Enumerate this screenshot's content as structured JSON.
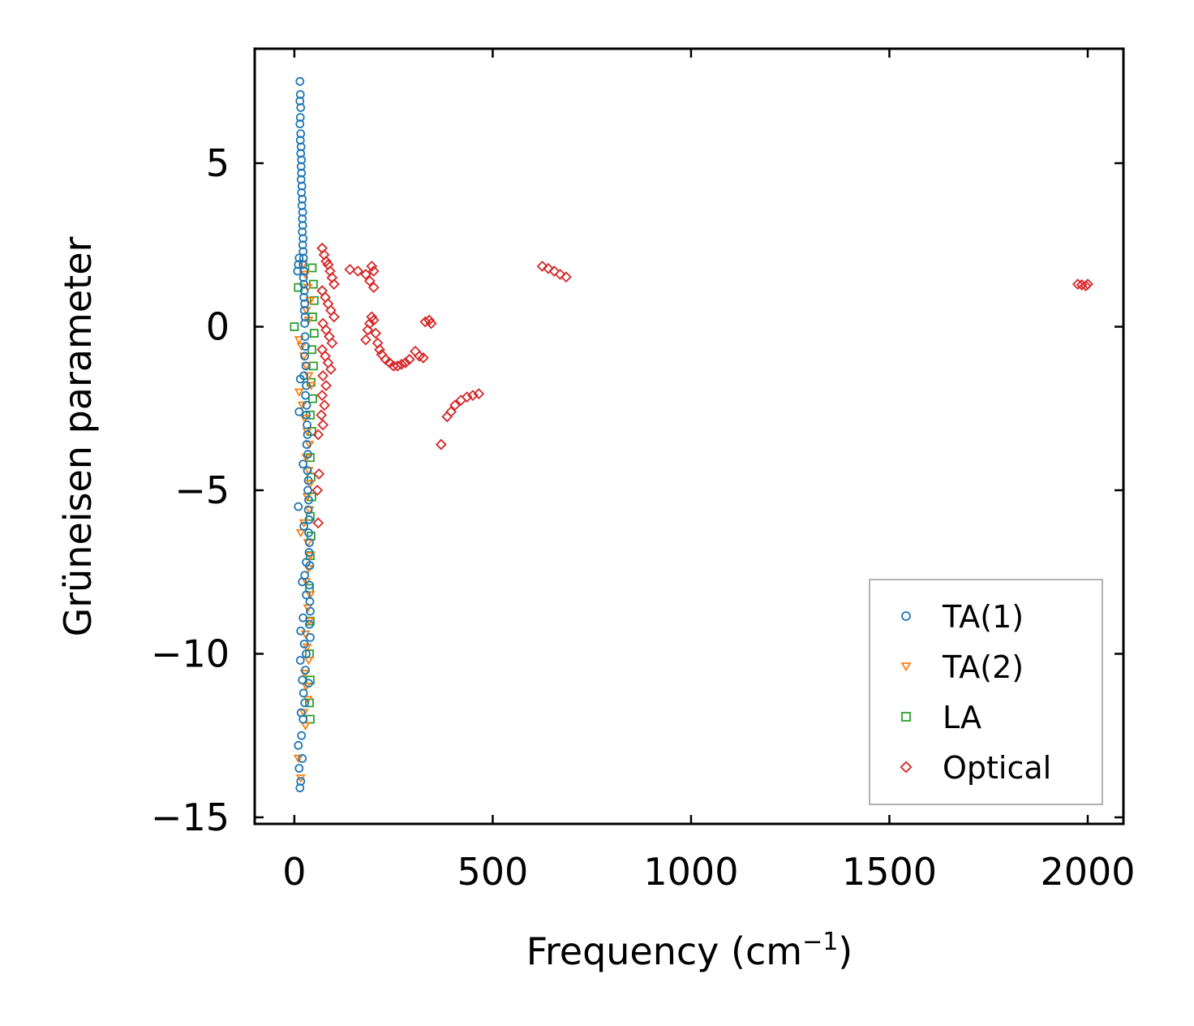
{
  "chart_data": {
    "type": "scatter",
    "xlabel": "Frequency (cm",
    "xlabel_sup": "−1",
    "xlabel_end": ")",
    "ylabel": "Grüneisen parameter",
    "xlim": [
      -100,
      2090
    ],
    "ylim": [
      -15.2,
      8.5
    ],
    "xticks": [
      0,
      500,
      1000,
      1500,
      2000
    ],
    "xtick_labels": [
      "0",
      "500",
      "1000",
      "1500",
      "2000"
    ],
    "yticks": [
      5,
      0,
      -5,
      -10,
      -15
    ],
    "ytick_labels": [
      "5",
      "0",
      "−5",
      "−10",
      "−15"
    ],
    "legend_position": "lower-right",
    "series": [
      {
        "name": "TA(1)",
        "marker": "circle",
        "color": "#1f77b4",
        "points": [
          [
            14,
            7.5
          ],
          [
            15,
            7.1
          ],
          [
            14,
            6.9
          ],
          [
            16,
            6.7
          ],
          [
            15,
            6.4
          ],
          [
            14,
            6.2
          ],
          [
            16,
            5.9
          ],
          [
            15,
            5.7
          ],
          [
            17,
            5.5
          ],
          [
            16,
            5.3
          ],
          [
            18,
            5.1
          ],
          [
            17,
            4.9
          ],
          [
            18,
            4.7
          ],
          [
            17,
            4.5
          ],
          [
            19,
            4.3
          ],
          [
            18,
            4.1
          ],
          [
            20,
            3.9
          ],
          [
            19,
            3.7
          ],
          [
            21,
            3.5
          ],
          [
            20,
            3.3
          ],
          [
            21,
            3.1
          ],
          [
            20,
            2.9
          ],
          [
            22,
            2.7
          ],
          [
            21,
            2.5
          ],
          [
            22,
            2.3
          ],
          [
            23,
            2.1
          ],
          [
            22,
            1.9
          ],
          [
            24,
            1.7
          ],
          [
            23,
            1.5
          ],
          [
            24,
            1.3
          ],
          [
            25,
            1.1
          ],
          [
            24,
            0.9
          ],
          [
            26,
            0.7
          ],
          [
            25,
            0.5
          ],
          [
            27,
            0.3
          ],
          [
            26,
            0.1
          ],
          [
            8,
            1.7
          ],
          [
            10,
            1.9
          ],
          [
            12,
            2.1
          ],
          [
            27,
            -0.3
          ],
          [
            28,
            -0.6
          ],
          [
            26,
            -0.9
          ],
          [
            29,
            -1.2
          ],
          [
            24,
            -1.5
          ],
          [
            15,
            -1.6
          ],
          [
            30,
            -1.8
          ],
          [
            28,
            -2.1
          ],
          [
            12,
            -2.6
          ],
          [
            31,
            -2.4
          ],
          [
            30,
            -2.7
          ],
          [
            32,
            -3.0
          ],
          [
            33,
            -3.3
          ],
          [
            31,
            -3.6
          ],
          [
            34,
            -3.9
          ],
          [
            22,
            -4.2
          ],
          [
            33,
            -4.4
          ],
          [
            35,
            -4.7
          ],
          [
            34,
            -5.0
          ],
          [
            36,
            -5.3
          ],
          [
            10,
            -5.5
          ],
          [
            35,
            -5.6
          ],
          [
            37,
            -5.9
          ],
          [
            24,
            -6.1
          ],
          [
            36,
            -6.3
          ],
          [
            38,
            -6.6
          ],
          [
            37,
            -6.9
          ],
          [
            30,
            -7.2
          ],
          [
            39,
            -7.3
          ],
          [
            26,
            -7.6
          ],
          [
            20,
            -7.8
          ],
          [
            38,
            -7.9
          ],
          [
            30,
            -8.2
          ],
          [
            39,
            -8.4
          ],
          [
            40,
            -8.7
          ],
          [
            22,
            -8.9
          ],
          [
            38,
            -9.1
          ],
          [
            16,
            -9.3
          ],
          [
            40,
            -9.5
          ],
          [
            25,
            -9.7
          ],
          [
            30,
            -10.0
          ],
          [
            15,
            -10.2
          ],
          [
            28,
            -10.5
          ],
          [
            20,
            -10.8
          ],
          [
            36,
            -10.9
          ],
          [
            23,
            -11.2
          ],
          [
            26,
            -11.5
          ],
          [
            17,
            -11.8
          ],
          [
            22,
            -12.0
          ],
          [
            18,
            -12.5
          ],
          [
            10,
            -12.8
          ],
          [
            20,
            -13.2
          ],
          [
            12,
            -13.5
          ],
          [
            16,
            -13.9
          ],
          [
            14,
            -14.1
          ]
        ]
      },
      {
        "name": "TA(2)",
        "marker": "triangle-down",
        "color": "#ff7f0e",
        "points": [
          [
            22,
            1.9
          ],
          [
            28,
            1.6
          ],
          [
            34,
            1.2
          ],
          [
            40,
            0.8
          ],
          [
            30,
            0.5
          ],
          [
            36,
            0.2
          ],
          [
            12,
            -0.4
          ],
          [
            18,
            -0.6
          ],
          [
            24,
            -0.9
          ],
          [
            30,
            -1.2
          ],
          [
            36,
            -1.5
          ],
          [
            42,
            -1.8
          ],
          [
            12,
            -2.0
          ],
          [
            20,
            -2.4
          ],
          [
            26,
            -2.8
          ],
          [
            32,
            -3.2
          ],
          [
            38,
            -3.6
          ],
          [
            30,
            -4.0
          ],
          [
            36,
            -4.4
          ],
          [
            40,
            -4.8
          ],
          [
            32,
            -5.2
          ],
          [
            38,
            -5.6
          ],
          [
            24,
            -6.0
          ],
          [
            16,
            -6.3
          ],
          [
            34,
            -6.6
          ],
          [
            40,
            -7.0
          ],
          [
            36,
            -7.4
          ],
          [
            30,
            -7.8
          ],
          [
            40,
            -8.2
          ],
          [
            34,
            -8.6
          ],
          [
            38,
            -9.0
          ],
          [
            28,
            -9.4
          ],
          [
            32,
            -9.8
          ],
          [
            36,
            -10.2
          ],
          [
            26,
            -10.6
          ],
          [
            30,
            -11.0
          ],
          [
            34,
            -11.4
          ],
          [
            24,
            -11.8
          ],
          [
            28,
            -12.2
          ],
          [
            10,
            -13.2
          ],
          [
            16,
            -13.8
          ]
        ]
      },
      {
        "name": "LA",
        "marker": "square",
        "color": "#2ca02c",
        "points": [
          [
            0,
            0.0
          ],
          [
            10,
            1.2
          ],
          [
            45,
            1.8
          ],
          [
            48,
            1.3
          ],
          [
            50,
            0.8
          ],
          [
            46,
            0.3
          ],
          [
            50,
            -0.2
          ],
          [
            44,
            -0.7
          ],
          [
            48,
            -1.2
          ],
          [
            42,
            -1.7
          ],
          [
            46,
            -2.2
          ],
          [
            40,
            -2.7
          ],
          [
            44,
            -3.2
          ],
          [
            40,
            -4.0
          ],
          [
            42,
            -4.6
          ],
          [
            44,
            -5.2
          ],
          [
            40,
            -5.8
          ],
          [
            42,
            -6.4
          ],
          [
            40,
            -7.0
          ],
          [
            38,
            -8.0
          ],
          [
            40,
            -9.0
          ],
          [
            38,
            -10.0
          ],
          [
            40,
            -10.8
          ],
          [
            38,
            -11.5
          ],
          [
            40,
            -12.0
          ]
        ]
      },
      {
        "name": "Optical",
        "marker": "diamond",
        "color": "#d62728",
        "points": [
          [
            70,
            2.4
          ],
          [
            75,
            2.2
          ],
          [
            80,
            2.0
          ],
          [
            85,
            1.9
          ],
          [
            90,
            1.7
          ],
          [
            95,
            1.5
          ],
          [
            100,
            1.3
          ],
          [
            70,
            1.1
          ],
          [
            78,
            0.9
          ],
          [
            85,
            0.7
          ],
          [
            92,
            0.5
          ],
          [
            100,
            0.3
          ],
          [
            72,
            0.1
          ],
          [
            80,
            -0.1
          ],
          [
            88,
            -0.3
          ],
          [
            95,
            -0.5
          ],
          [
            70,
            -0.7
          ],
          [
            78,
            -0.9
          ],
          [
            85,
            -1.1
          ],
          [
            92,
            -1.3
          ],
          [
            72,
            -1.5
          ],
          [
            80,
            -1.8
          ],
          [
            70,
            -2.1
          ],
          [
            76,
            -2.4
          ],
          [
            68,
            -2.7
          ],
          [
            72,
            -3.0
          ],
          [
            60,
            -3.3
          ],
          [
            62,
            -4.5
          ],
          [
            58,
            -5.0
          ],
          [
            60,
            -6.0
          ],
          [
            140,
            1.75
          ],
          [
            160,
            1.7
          ],
          [
            180,
            1.6
          ],
          [
            195,
            1.85
          ],
          [
            200,
            1.7
          ],
          [
            190,
            1.4
          ],
          [
            200,
            1.2
          ],
          [
            180,
            -0.4
          ],
          [
            185,
            -0.1
          ],
          [
            190,
            0.1
          ],
          [
            195,
            0.3
          ],
          [
            200,
            0.2
          ],
          [
            205,
            -0.2
          ],
          [
            210,
            -0.5
          ],
          [
            215,
            -0.7
          ],
          [
            220,
            -0.85
          ],
          [
            230,
            -1.0
          ],
          [
            240,
            -1.1
          ],
          [
            250,
            -1.2
          ],
          [
            260,
            -1.2
          ],
          [
            270,
            -1.15
          ],
          [
            280,
            -1.1
          ],
          [
            290,
            -1.0
          ],
          [
            305,
            -0.75
          ],
          [
            315,
            -0.9
          ],
          [
            325,
            -0.95
          ],
          [
            330,
            0.15
          ],
          [
            340,
            0.2
          ],
          [
            345,
            0.1
          ],
          [
            370,
            -3.6
          ],
          [
            385,
            -2.75
          ],
          [
            395,
            -2.6
          ],
          [
            405,
            -2.4
          ],
          [
            420,
            -2.25
          ],
          [
            435,
            -2.15
          ],
          [
            450,
            -2.1
          ],
          [
            465,
            -2.05
          ],
          [
            625,
            1.85
          ],
          [
            640,
            1.78
          ],
          [
            655,
            1.7
          ],
          [
            670,
            1.6
          ],
          [
            685,
            1.52
          ],
          [
            1975,
            1.3
          ],
          [
            1985,
            1.28
          ],
          [
            1995,
            1.25
          ],
          [
            2000,
            1.3
          ]
        ]
      }
    ]
  }
}
